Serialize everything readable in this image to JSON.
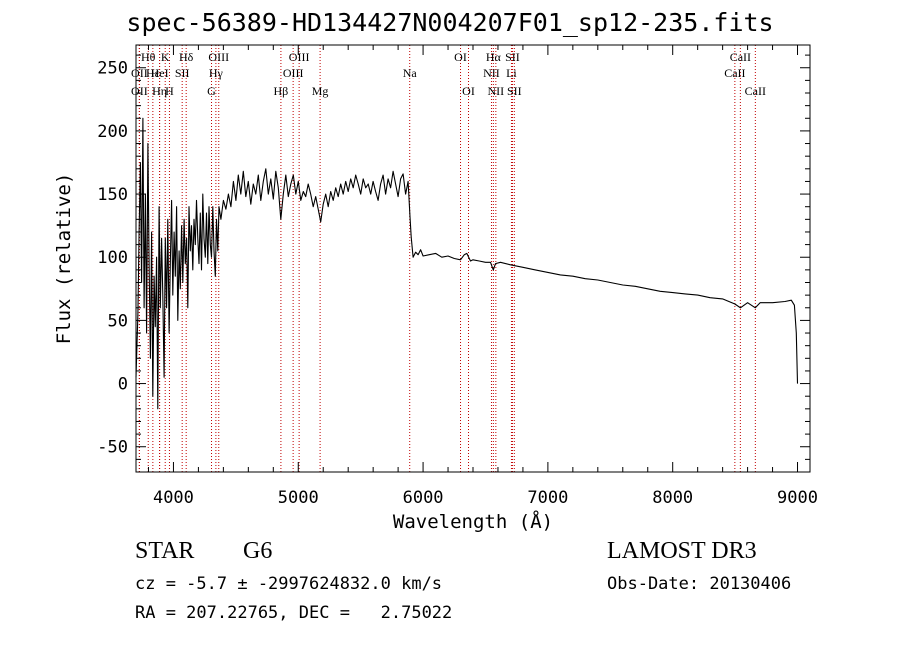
{
  "title": "spec-56389-HD134427N004207F01_sp12-235.fits",
  "info": {
    "object_type": "STAR",
    "subclass": "G6",
    "survey": "LAMOST DR3",
    "redshift": "cz = -5.7 ± -2997624832.0 km/s",
    "obs_date": "Obs-Date: 20130406",
    "coords": "RA = 207.22765, DEC =   2.75022"
  },
  "chart_data": {
    "type": "line",
    "title": "spec-56389-HD134427N004207F01_sp12-235.fits",
    "xlabel": "Wavelength (Å)",
    "ylabel": "Flux (relative)",
    "xlim": [
      3700,
      9100
    ],
    "ylim": [
      -70,
      268
    ],
    "xticks": [
      4000,
      5000,
      6000,
      7000,
      8000,
      9000
    ],
    "yticks": [
      -50,
      0,
      50,
      100,
      150,
      200,
      250
    ],
    "series": [
      {
        "name": "flux",
        "points": [
          [
            3700,
            5
          ],
          [
            3715,
            55
          ],
          [
            3725,
            120
          ],
          [
            3735,
            175
          ],
          [
            3745,
            80
          ],
          [
            3755,
            210
          ],
          [
            3765,
            60
          ],
          [
            3775,
            150
          ],
          [
            3785,
            40
          ],
          [
            3795,
            190
          ],
          [
            3805,
            95
          ],
          [
            3815,
            20
          ],
          [
            3825,
            120
          ],
          [
            3835,
            -10
          ],
          [
            3845,
            85
          ],
          [
            3855,
            45
          ],
          [
            3865,
            100
          ],
          [
            3875,
            -20
          ],
          [
            3885,
            140
          ],
          [
            3895,
            60
          ],
          [
            3905,
            115
          ],
          [
            3915,
            70
          ],
          [
            3925,
            5
          ],
          [
            3935,
            115
          ],
          [
            3945,
            60
          ],
          [
            3955,
            130
          ],
          [
            3965,
            40
          ],
          [
            3975,
            95
          ],
          [
            3985,
            145
          ],
          [
            3995,
            70
          ],
          [
            4005,
            120
          ],
          [
            4015,
            85
          ],
          [
            4025,
            140
          ],
          [
            4035,
            50
          ],
          [
            4045,
            105
          ],
          [
            4055,
            75
          ],
          [
            4065,
            125
          ],
          [
            4075,
            80
          ],
          [
            4085,
            130
          ],
          [
            4095,
            95
          ],
          [
            4105,
            115
          ],
          [
            4115,
            60
          ],
          [
            4125,
            140
          ],
          [
            4135,
            105
          ],
          [
            4145,
            125
          ],
          [
            4155,
            90
          ],
          [
            4165,
            130
          ],
          [
            4175,
            110
          ],
          [
            4185,
            145
          ],
          [
            4195,
            115
          ],
          [
            4205,
            95
          ],
          [
            4215,
            135
          ],
          [
            4225,
            90
          ],
          [
            4235,
            150
          ],
          [
            4245,
            115
          ],
          [
            4255,
            100
          ],
          [
            4265,
            135
          ],
          [
            4275,
            95
          ],
          [
            4285,
            140
          ],
          [
            4295,
            110
          ],
          [
            4305,
            100
          ],
          [
            4315,
            140
          ],
          [
            4325,
            105
          ],
          [
            4335,
            85
          ],
          [
            4345,
            130
          ],
          [
            4355,
            105
          ],
          [
            4365,
            140
          ],
          [
            4380,
            130
          ],
          [
            4400,
            145
          ],
          [
            4420,
            138
          ],
          [
            4440,
            150
          ],
          [
            4460,
            140
          ],
          [
            4480,
            160
          ],
          [
            4500,
            145
          ],
          [
            4520,
            165
          ],
          [
            4540,
            150
          ],
          [
            4560,
            168
          ],
          [
            4580,
            148
          ],
          [
            4600,
            160
          ],
          [
            4620,
            142
          ],
          [
            4640,
            158
          ],
          [
            4660,
            150
          ],
          [
            4680,
            165
          ],
          [
            4700,
            145
          ],
          [
            4720,
            160
          ],
          [
            4740,
            170
          ],
          [
            4760,
            150
          ],
          [
            4780,
            162
          ],
          [
            4800,
            146
          ],
          [
            4820,
            168
          ],
          [
            4840,
            155
          ],
          [
            4860,
            130
          ],
          [
            4880,
            150
          ],
          [
            4900,
            165
          ],
          [
            4920,
            148
          ],
          [
            4940,
            158
          ],
          [
            4960,
            165
          ],
          [
            4980,
            150
          ],
          [
            5000,
            160
          ],
          [
            5020,
            145
          ],
          [
            5040,
            152
          ],
          [
            5060,
            148
          ],
          [
            5080,
            158
          ],
          [
            5100,
            150
          ],
          [
            5120,
            140
          ],
          [
            5140,
            148
          ],
          [
            5160,
            138
          ],
          [
            5180,
            128
          ],
          [
            5200,
            142
          ],
          [
            5220,
            150
          ],
          [
            5240,
            140
          ],
          [
            5260,
            152
          ],
          [
            5280,
            145
          ],
          [
            5300,
            155
          ],
          [
            5320,
            148
          ],
          [
            5340,
            158
          ],
          [
            5360,
            150
          ],
          [
            5380,
            160
          ],
          [
            5400,
            152
          ],
          [
            5420,
            162
          ],
          [
            5440,
            155
          ],
          [
            5460,
            165
          ],
          [
            5480,
            158
          ],
          [
            5500,
            150
          ],
          [
            5520,
            162
          ],
          [
            5540,
            155
          ],
          [
            5560,
            158
          ],
          [
            5580,
            150
          ],
          [
            5600,
            160
          ],
          [
            5620,
            152
          ],
          [
            5640,
            145
          ],
          [
            5660,
            158
          ],
          [
            5680,
            165
          ],
          [
            5700,
            150
          ],
          [
            5720,
            162
          ],
          [
            5740,
            155
          ],
          [
            5760,
            168
          ],
          [
            5780,
            158
          ],
          [
            5800,
            148
          ],
          [
            5820,
            162
          ],
          [
            5840,
            166
          ],
          [
            5860,
            150
          ],
          [
            5880,
            160
          ],
          [
            5895,
            132
          ],
          [
            5905,
            116
          ],
          [
            5920,
            100
          ],
          [
            5940,
            104
          ],
          [
            5960,
            102
          ],
          [
            5980,
            106
          ],
          [
            6000,
            101
          ],
          [
            6050,
            102
          ],
          [
            6100,
            103
          ],
          [
            6150,
            100
          ],
          [
            6200,
            101
          ],
          [
            6250,
            99
          ],
          [
            6300,
            98
          ],
          [
            6330,
            102
          ],
          [
            6350,
            103
          ],
          [
            6380,
            97
          ],
          [
            6400,
            98
          ],
          [
            6450,
            97
          ],
          [
            6500,
            96
          ],
          [
            6540,
            96
          ],
          [
            6563,
            90
          ],
          [
            6580,
            95
          ],
          [
            6620,
            96
          ],
          [
            6700,
            94
          ],
          [
            6800,
            92
          ],
          [
            6900,
            90
          ],
          [
            7000,
            88
          ],
          [
            7100,
            86
          ],
          [
            7200,
            85
          ],
          [
            7300,
            83
          ],
          [
            7400,
            82
          ],
          [
            7500,
            80
          ],
          [
            7600,
            78
          ],
          [
            7700,
            77
          ],
          [
            7800,
            75
          ],
          [
            7900,
            73
          ],
          [
            8000,
            72
          ],
          [
            8100,
            71
          ],
          [
            8200,
            70
          ],
          [
            8300,
            68
          ],
          [
            8400,
            67
          ],
          [
            8498,
            63
          ],
          [
            8542,
            60
          ],
          [
            8600,
            64
          ],
          [
            8662,
            60
          ],
          [
            8700,
            64
          ],
          [
            8800,
            64
          ],
          [
            8900,
            65
          ],
          [
            8950,
            66
          ],
          [
            8975,
            62
          ],
          [
            8990,
            40
          ],
          [
            9000,
            0
          ]
        ]
      }
    ],
    "line_markers": [
      {
        "label": "Hθ",
        "wl": 3798,
        "row": 1
      },
      {
        "label": "OII",
        "wl": 3727,
        "row": 2
      },
      {
        "label": "OII",
        "wl": 3727,
        "row": 3
      },
      {
        "label": "Hε",
        "wl": 3835,
        "row": 2
      },
      {
        "label": "Hη",
        "wl": 3889,
        "row": 3
      },
      {
        "label": "K",
        "wl": 3934,
        "row": 1
      },
      {
        "label": "HeI",
        "wl": 3889,
        "row": 2
      },
      {
        "label": "H",
        "wl": 3968,
        "row": 3
      },
      {
        "label": "Hδ",
        "wl": 4102,
        "row": 1
      },
      {
        "label": "SII",
        "wl": 4070,
        "row": 2
      },
      {
        "label": "OIII",
        "wl": 4363,
        "row": 1
      },
      {
        "label": "Hγ",
        "wl": 4340,
        "row": 2
      },
      {
        "label": "G",
        "wl": 4305,
        "row": 3
      },
      {
        "label": "Hβ",
        "wl": 4861,
        "row": 3
      },
      {
        "label": "OIII",
        "wl": 4959,
        "row": 2
      },
      {
        "label": "OIII",
        "wl": 5007,
        "row": 1
      },
      {
        "label": "Mg",
        "wl": 5175,
        "row": 3
      },
      {
        "label": "Na",
        "wl": 5893,
        "row": 2
      },
      {
        "label": "OI",
        "wl": 6300,
        "row": 1
      },
      {
        "label": "OI",
        "wl": 6364,
        "row": 3
      },
      {
        "label": "NII",
        "wl": 6548,
        "row": 2
      },
      {
        "label": "Hα",
        "wl": 6563,
        "row": 1
      },
      {
        "label": "NII",
        "wl": 6583,
        "row": 3
      },
      {
        "label": "SII",
        "wl": 6716,
        "row": 1
      },
      {
        "label": "Li",
        "wl": 6708,
        "row": 2
      },
      {
        "label": "SII",
        "wl": 6731,
        "row": 3
      },
      {
        "label": "CaII",
        "wl": 8498,
        "row": 2
      },
      {
        "label": "CaII",
        "wl": 8542,
        "row": 1
      },
      {
        "label": "CaII",
        "wl": 8662,
        "row": 3
      }
    ]
  }
}
